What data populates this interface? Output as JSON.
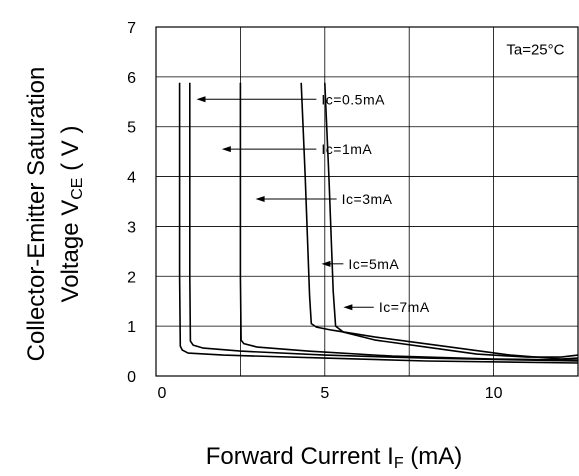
{
  "chart_data": {
    "type": "line",
    "ylabel_line1": "Collector-Emitter Saturation",
    "ylabel_line2_prefix": "Voltage V",
    "ylabel_line2_sub": "CE",
    "ylabel_line2_suffix": " ( V )",
    "xlabel_prefix": "Forward Current I",
    "xlabel_sub": "F",
    "xlabel_suffix": " (mA)",
    "condition": "Ta=25°C",
    "xlim": [
      0,
      12.5
    ],
    "ylim": [
      0,
      7
    ],
    "xticks": [
      0,
      5,
      10
    ],
    "xtick_labels": [
      "0",
      "5",
      "10"
    ],
    "yticks": [
      0,
      1,
      2,
      3,
      4,
      5,
      6,
      7
    ],
    "ytick_labels": [
      "0",
      "1",
      "2",
      "3",
      "4",
      "5",
      "6",
      "7"
    ],
    "x_gridlines": [
      0,
      2.5,
      5,
      7.5,
      10,
      12.5
    ],
    "y_gridlines": [
      0,
      1,
      2,
      3,
      4,
      5,
      6,
      7
    ],
    "grid": true,
    "series": [
      {
        "name": "Ic=0.5mA",
        "label_text": "Ic=0.5mA",
        "label_xy": [
          4.9,
          5.55
        ],
        "arrow_from": [
          4.75,
          5.55
        ],
        "arrow_to": [
          1.2,
          5.55
        ],
        "points": [
          [
            0.7,
            5.88
          ],
          [
            0.7,
            2.0
          ],
          [
            0.72,
            0.6
          ],
          [
            0.78,
            0.52
          ],
          [
            0.95,
            0.46
          ],
          [
            2.0,
            0.42
          ],
          [
            5.0,
            0.36
          ],
          [
            8.0,
            0.3
          ],
          [
            12.5,
            0.26
          ]
        ]
      },
      {
        "name": "Ic=1mA",
        "label_text": "Ic=1mA",
        "label_xy": [
          4.9,
          4.55
        ],
        "arrow_from": [
          4.75,
          4.55
        ],
        "arrow_to": [
          1.95,
          4.55
        ],
        "points": [
          [
            1.0,
            5.88
          ],
          [
            1.0,
            2.0
          ],
          [
            1.02,
            0.7
          ],
          [
            1.1,
            0.62
          ],
          [
            1.4,
            0.56
          ],
          [
            2.5,
            0.5
          ],
          [
            5.0,
            0.42
          ],
          [
            8.0,
            0.36
          ],
          [
            12.5,
            0.3
          ]
        ]
      },
      {
        "name": "Ic=3mA",
        "label_text": "Ic=3mA",
        "label_xy": [
          5.5,
          3.55
        ],
        "arrow_from": [
          5.35,
          3.55
        ],
        "arrow_to": [
          2.95,
          3.55
        ],
        "points": [
          [
            2.5,
            5.88
          ],
          [
            2.5,
            2.0
          ],
          [
            2.52,
            0.72
          ],
          [
            2.6,
            0.65
          ],
          [
            3.0,
            0.58
          ],
          [
            4.5,
            0.5
          ],
          [
            7.0,
            0.4
          ],
          [
            10.0,
            0.34
          ],
          [
            12.5,
            0.32
          ]
        ]
      },
      {
        "name": "Ic=5mA",
        "label_text": "Ic=5mA",
        "label_xy": [
          5.7,
          2.25
        ],
        "arrow_from": [
          5.55,
          2.25
        ],
        "arrow_to": [
          4.9,
          2.25
        ],
        "points": [
          [
            4.3,
            5.88
          ],
          [
            4.42,
            4.0
          ],
          [
            4.55,
            1.6
          ],
          [
            4.6,
            1.05
          ],
          [
            4.75,
            0.98
          ],
          [
            5.2,
            0.92
          ],
          [
            6.5,
            0.78
          ],
          [
            8.5,
            0.6
          ],
          [
            10.5,
            0.42
          ],
          [
            12.0,
            0.34
          ],
          [
            12.5,
            0.36
          ]
        ]
      },
      {
        "name": "Ic=7mA",
        "label_text": "Ic=7mA",
        "label_xy": [
          6.6,
          1.38
        ],
        "arrow_from": [
          6.45,
          1.38
        ],
        "arrow_to": [
          5.55,
          1.38
        ],
        "points": [
          [
            5.0,
            5.88
          ],
          [
            5.12,
            4.0
          ],
          [
            5.25,
            1.7
          ],
          [
            5.32,
            1.0
          ],
          [
            5.55,
            0.88
          ],
          [
            6.5,
            0.72
          ],
          [
            8.0,
            0.58
          ],
          [
            9.5,
            0.44
          ],
          [
            11.0,
            0.38
          ],
          [
            12.0,
            0.38
          ],
          [
            12.5,
            0.42
          ]
        ]
      }
    ]
  }
}
